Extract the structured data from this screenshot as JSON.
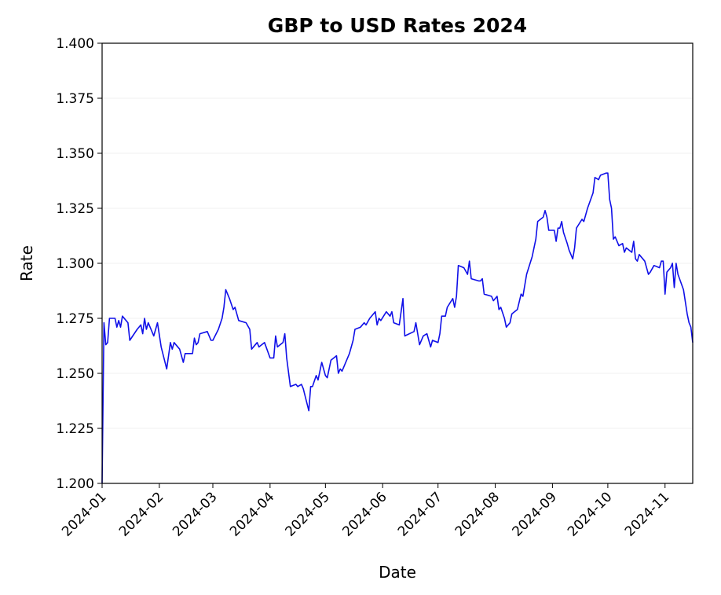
{
  "chart_data": {
    "type": "line",
    "title": "GBP to USD Rates 2024",
    "x_label": "Date",
    "y_label": "Rate",
    "color": "#1010e8",
    "grid": true,
    "xlim": [
      0,
      320
    ],
    "ylim": [
      1.2,
      1.4
    ],
    "xticks": [
      {
        "value": 0,
        "label": "2024-01"
      },
      {
        "value": 31,
        "label": "2024-02"
      },
      {
        "value": 60,
        "label": "2024-03"
      },
      {
        "value": 91,
        "label": "2024-04"
      },
      {
        "value": 121,
        "label": "2024-05"
      },
      {
        "value": 152,
        "label": "2024-06"
      },
      {
        "value": 182,
        "label": "2024-07"
      },
      {
        "value": 213,
        "label": "2024-08"
      },
      {
        "value": 244,
        "label": "2024-09"
      },
      {
        "value": 274,
        "label": "2024-10"
      },
      {
        "value": 305,
        "label": "2024-11"
      }
    ],
    "yticks": [
      {
        "value": 1.2,
        "label": "1.200"
      },
      {
        "value": 1.225,
        "label": "1.225"
      },
      {
        "value": 1.25,
        "label": "1.250"
      },
      {
        "value": 1.275,
        "label": "1.275"
      },
      {
        "value": 1.3,
        "label": "1.300"
      },
      {
        "value": 1.325,
        "label": "1.325"
      },
      {
        "value": 1.35,
        "label": "1.350"
      },
      {
        "value": 1.375,
        "label": "1.375"
      },
      {
        "value": 1.4,
        "label": "1.400"
      }
    ],
    "x": [
      0,
      1,
      2,
      3,
      4,
      7,
      8,
      9,
      10,
      11,
      14,
      15,
      19,
      21,
      22,
      23,
      24,
      25,
      28,
      30,
      32,
      35,
      37,
      38,
      39,
      42,
      44,
      45,
      49,
      50,
      51,
      52,
      53,
      57,
      59,
      60,
      63,
      65,
      66,
      67,
      69,
      71,
      72,
      74,
      78,
      80,
      81,
      84,
      85,
      88,
      91,
      93,
      94,
      95,
      98,
      99,
      100,
      102,
      105,
      106,
      108,
      109,
      112,
      113,
      114,
      116,
      117,
      119,
      121,
      122,
      124,
      127,
      128,
      129,
      130,
      134,
      136,
      137,
      140,
      142,
      143,
      145,
      148,
      149,
      150,
      151,
      154,
      156,
      157,
      158,
      161,
      163,
      164,
      169,
      170,
      172,
      174,
      176,
      178,
      179,
      182,
      183,
      184,
      186,
      187,
      190,
      191,
      192,
      193,
      196,
      198,
      199,
      200,
      204,
      205,
      206,
      207,
      211,
      212,
      214,
      215,
      216,
      218,
      219,
      221,
      222,
      225,
      227,
      228,
      230,
      233,
      235,
      236,
      239,
      240,
      241,
      242,
      245,
      246,
      247,
      248,
      249,
      250,
      252,
      253,
      255,
      256,
      257,
      260,
      261,
      263,
      266,
      267,
      269,
      270,
      273,
      274,
      275,
      276,
      277,
      278,
      280,
      282,
      283,
      284,
      287,
      288,
      289,
      290,
      291,
      294,
      296,
      297,
      299,
      302,
      303,
      304,
      305,
      306,
      308,
      309,
      310,
      311,
      312,
      315,
      317,
      318,
      319,
      320
    ],
    "values": [
      1.2,
      1.273,
      1.263,
      1.264,
      1.275,
      1.275,
      1.271,
      1.274,
      1.271,
      1.276,
      1.273,
      1.265,
      1.27,
      1.272,
      1.268,
      1.275,
      1.27,
      1.273,
      1.267,
      1.273,
      1.262,
      1.252,
      1.264,
      1.261,
      1.264,
      1.261,
      1.255,
      1.259,
      1.259,
      1.266,
      1.263,
      1.264,
      1.268,
      1.269,
      1.265,
      1.265,
      1.27,
      1.275,
      1.28,
      1.288,
      1.284,
      1.279,
      1.28,
      1.274,
      1.273,
      1.27,
      1.261,
      1.264,
      1.262,
      1.264,
      1.257,
      1.257,
      1.267,
      1.262,
      1.264,
      1.268,
      1.257,
      1.244,
      1.245,
      1.244,
      1.245,
      1.243,
      1.233,
      1.244,
      1.244,
      1.249,
      1.247,
      1.255,
      1.249,
      1.248,
      1.256,
      1.258,
      1.25,
      1.252,
      1.251,
      1.259,
      1.265,
      1.27,
      1.271,
      1.273,
      1.272,
      1.275,
      1.278,
      1.272,
      1.275,
      1.274,
      1.278,
      1.276,
      1.278,
      1.273,
      1.272,
      1.284,
      1.267,
      1.269,
      1.273,
      1.263,
      1.267,
      1.268,
      1.262,
      1.265,
      1.264,
      1.268,
      1.276,
      1.276,
      1.28,
      1.284,
      1.28,
      1.285,
      1.299,
      1.298,
      1.295,
      1.301,
      1.293,
      1.292,
      1.292,
      1.293,
      1.286,
      1.285,
      1.283,
      1.285,
      1.279,
      1.28,
      1.275,
      1.271,
      1.273,
      1.277,
      1.279,
      1.286,
      1.285,
      1.295,
      1.303,
      1.311,
      1.319,
      1.321,
      1.324,
      1.321,
      1.315,
      1.315,
      1.31,
      1.316,
      1.316,
      1.319,
      1.314,
      1.309,
      1.306,
      1.302,
      1.307,
      1.316,
      1.32,
      1.319,
      1.325,
      1.332,
      1.339,
      1.338,
      1.34,
      1.341,
      1.341,
      1.329,
      1.325,
      1.311,
      1.312,
      1.308,
      1.309,
      1.305,
      1.307,
      1.305,
      1.31,
      1.302,
      1.301,
      1.304,
      1.301,
      1.295,
      1.296,
      1.299,
      1.298,
      1.301,
      1.301,
      1.286,
      1.296,
      1.298,
      1.3,
      1.289,
      1.3,
      1.295,
      1.288,
      1.277,
      1.273,
      1.271,
      1.264
    ]
  }
}
